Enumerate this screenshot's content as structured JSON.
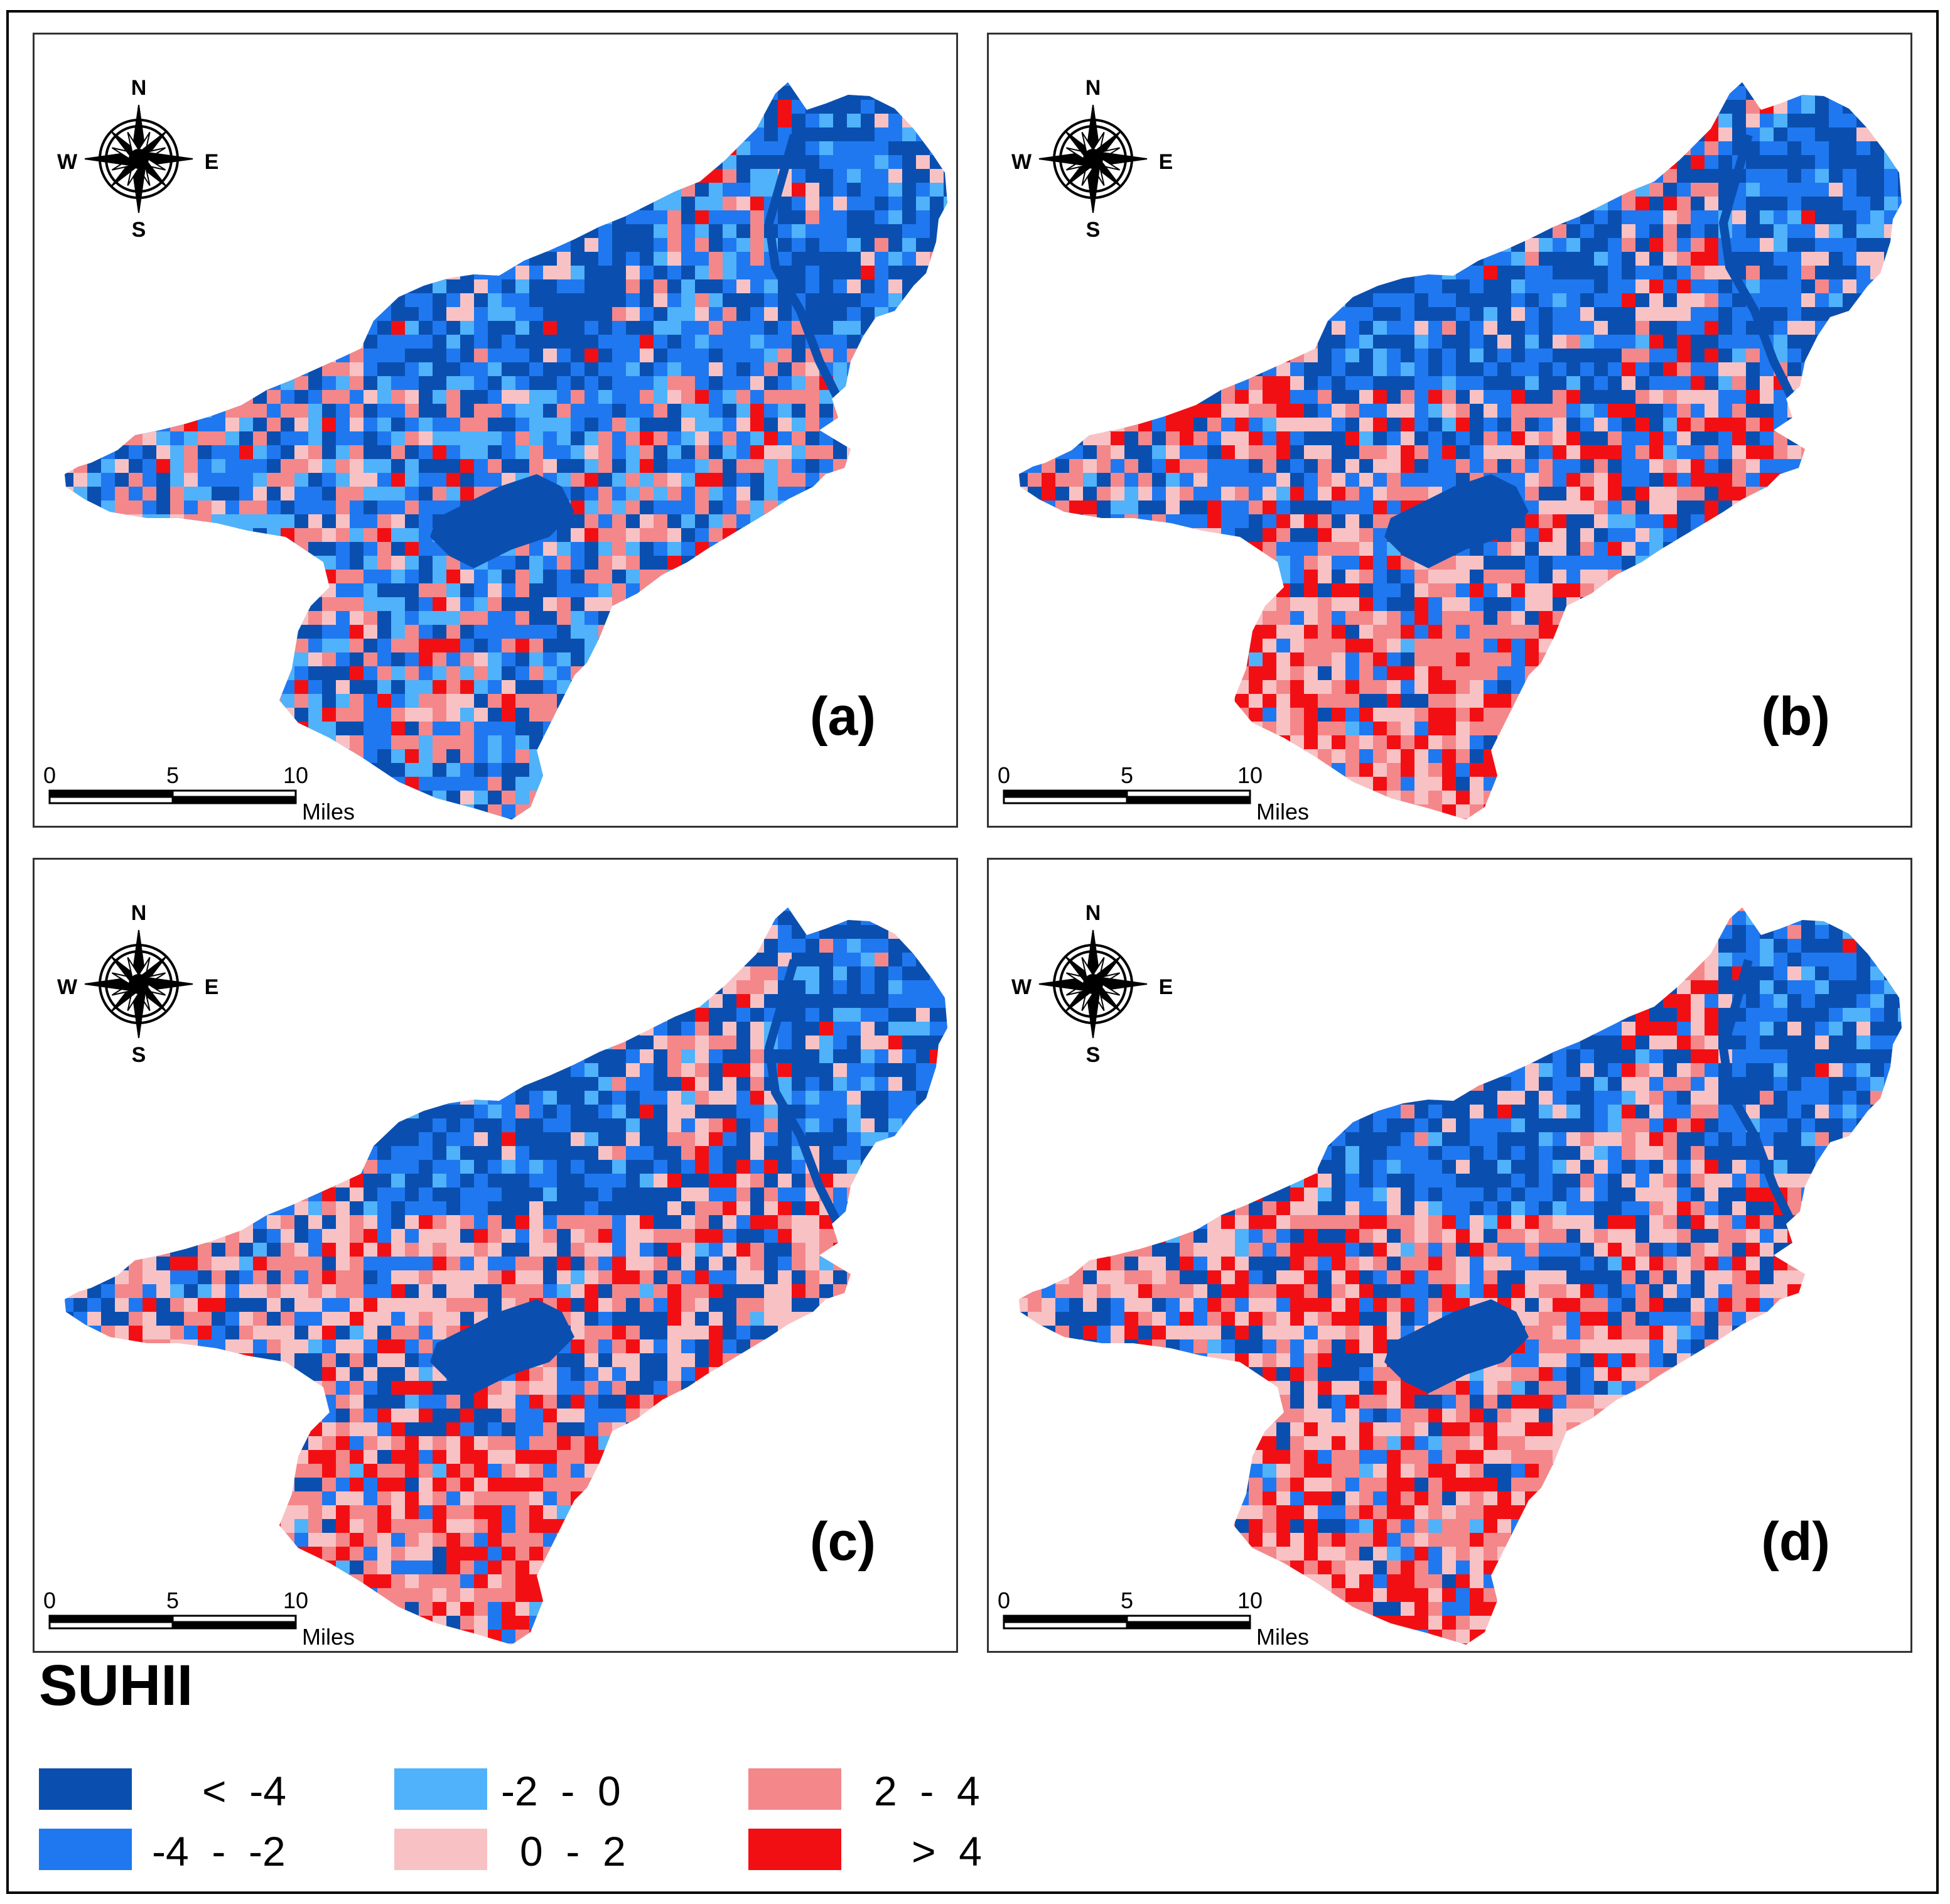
{
  "panels": [
    {
      "label": "(a)",
      "seed": 11,
      "weights": [
        0.22,
        0.26,
        0.18,
        0.08,
        0.22,
        0.04
      ]
    },
    {
      "label": "(b)",
      "seed": 23,
      "weights": [
        0.18,
        0.28,
        0.04,
        0.18,
        0.16,
        0.16
      ]
    },
    {
      "label": "(c)",
      "seed": 37,
      "weights": [
        0.22,
        0.14,
        0.02,
        0.28,
        0.22,
        0.12
      ]
    },
    {
      "label": "(d)",
      "seed": 41,
      "weights": [
        0.2,
        0.14,
        0.02,
        0.26,
        0.22,
        0.16
      ]
    }
  ],
  "compass": {
    "n": "N",
    "s": "S",
    "e": "E",
    "w": "W"
  },
  "scale_bar": {
    "ticks": [
      "0",
      "5",
      "10"
    ],
    "unit": "Miles"
  },
  "legend": {
    "title": "SUHII",
    "items": [
      {
        "label": "<  -4",
        "color": "#0a4fb0"
      },
      {
        "label": "-4  -  -2",
        "color": "#1f78f0"
      },
      {
        "label": "-2  -  0",
        "color": "#4fb2fa"
      },
      {
        "label": "0  -  2",
        "color": "#f8c2c4"
      },
      {
        "label": "2  -  4",
        "color": "#f4878a"
      },
      {
        "label": ">  4",
        "color": "#f20f14"
      }
    ]
  }
}
